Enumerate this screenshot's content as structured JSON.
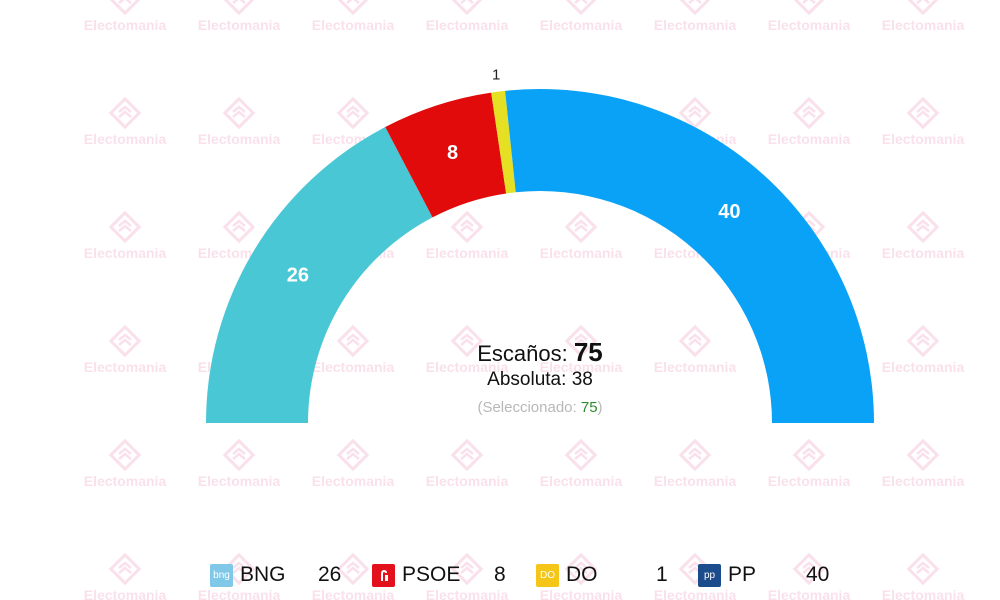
{
  "watermark": {
    "text": "Electomania",
    "color": "#d61b6e"
  },
  "chart_data": {
    "type": "pie",
    "subtype": "parliament-hemicycle",
    "title": "",
    "total_seats": 75,
    "series": [
      {
        "name": "BNG",
        "value": 26,
        "color": "#4ac7d5",
        "icon": "bng-logo-icon",
        "icon_color": "#7fc8e8",
        "icon_text": "bng"
      },
      {
        "name": "PSOE",
        "value": 8,
        "color": "#e10b0b",
        "icon": "psoe-logo-icon",
        "icon_color": "#e3111b",
        "icon_text": ""
      },
      {
        "name": "DO",
        "value": 1,
        "color": "#e5e023",
        "icon": "do-logo-icon",
        "icon_color": "#f5c518",
        "icon_text": "DO"
      },
      {
        "name": "PP",
        "value": 40,
        "color": "#0aa2f7",
        "icon": "pp-logo-icon",
        "icon_color": "#1c4c8c",
        "icon_text": "pp"
      }
    ]
  },
  "center": {
    "seats_label": "Escaños:",
    "seats_value": "75",
    "majority_label": "Absoluta:",
    "majority_value": "38",
    "selected_open": "(Seleccionado: ",
    "selected_value": "75",
    "selected_close": ")"
  },
  "legend": [
    {
      "name": "BNG",
      "seats": "26"
    },
    {
      "name": "PSOE",
      "seats": "8"
    },
    {
      "name": "DO",
      "seats": "1"
    },
    {
      "name": "PP",
      "seats": "40"
    }
  ]
}
